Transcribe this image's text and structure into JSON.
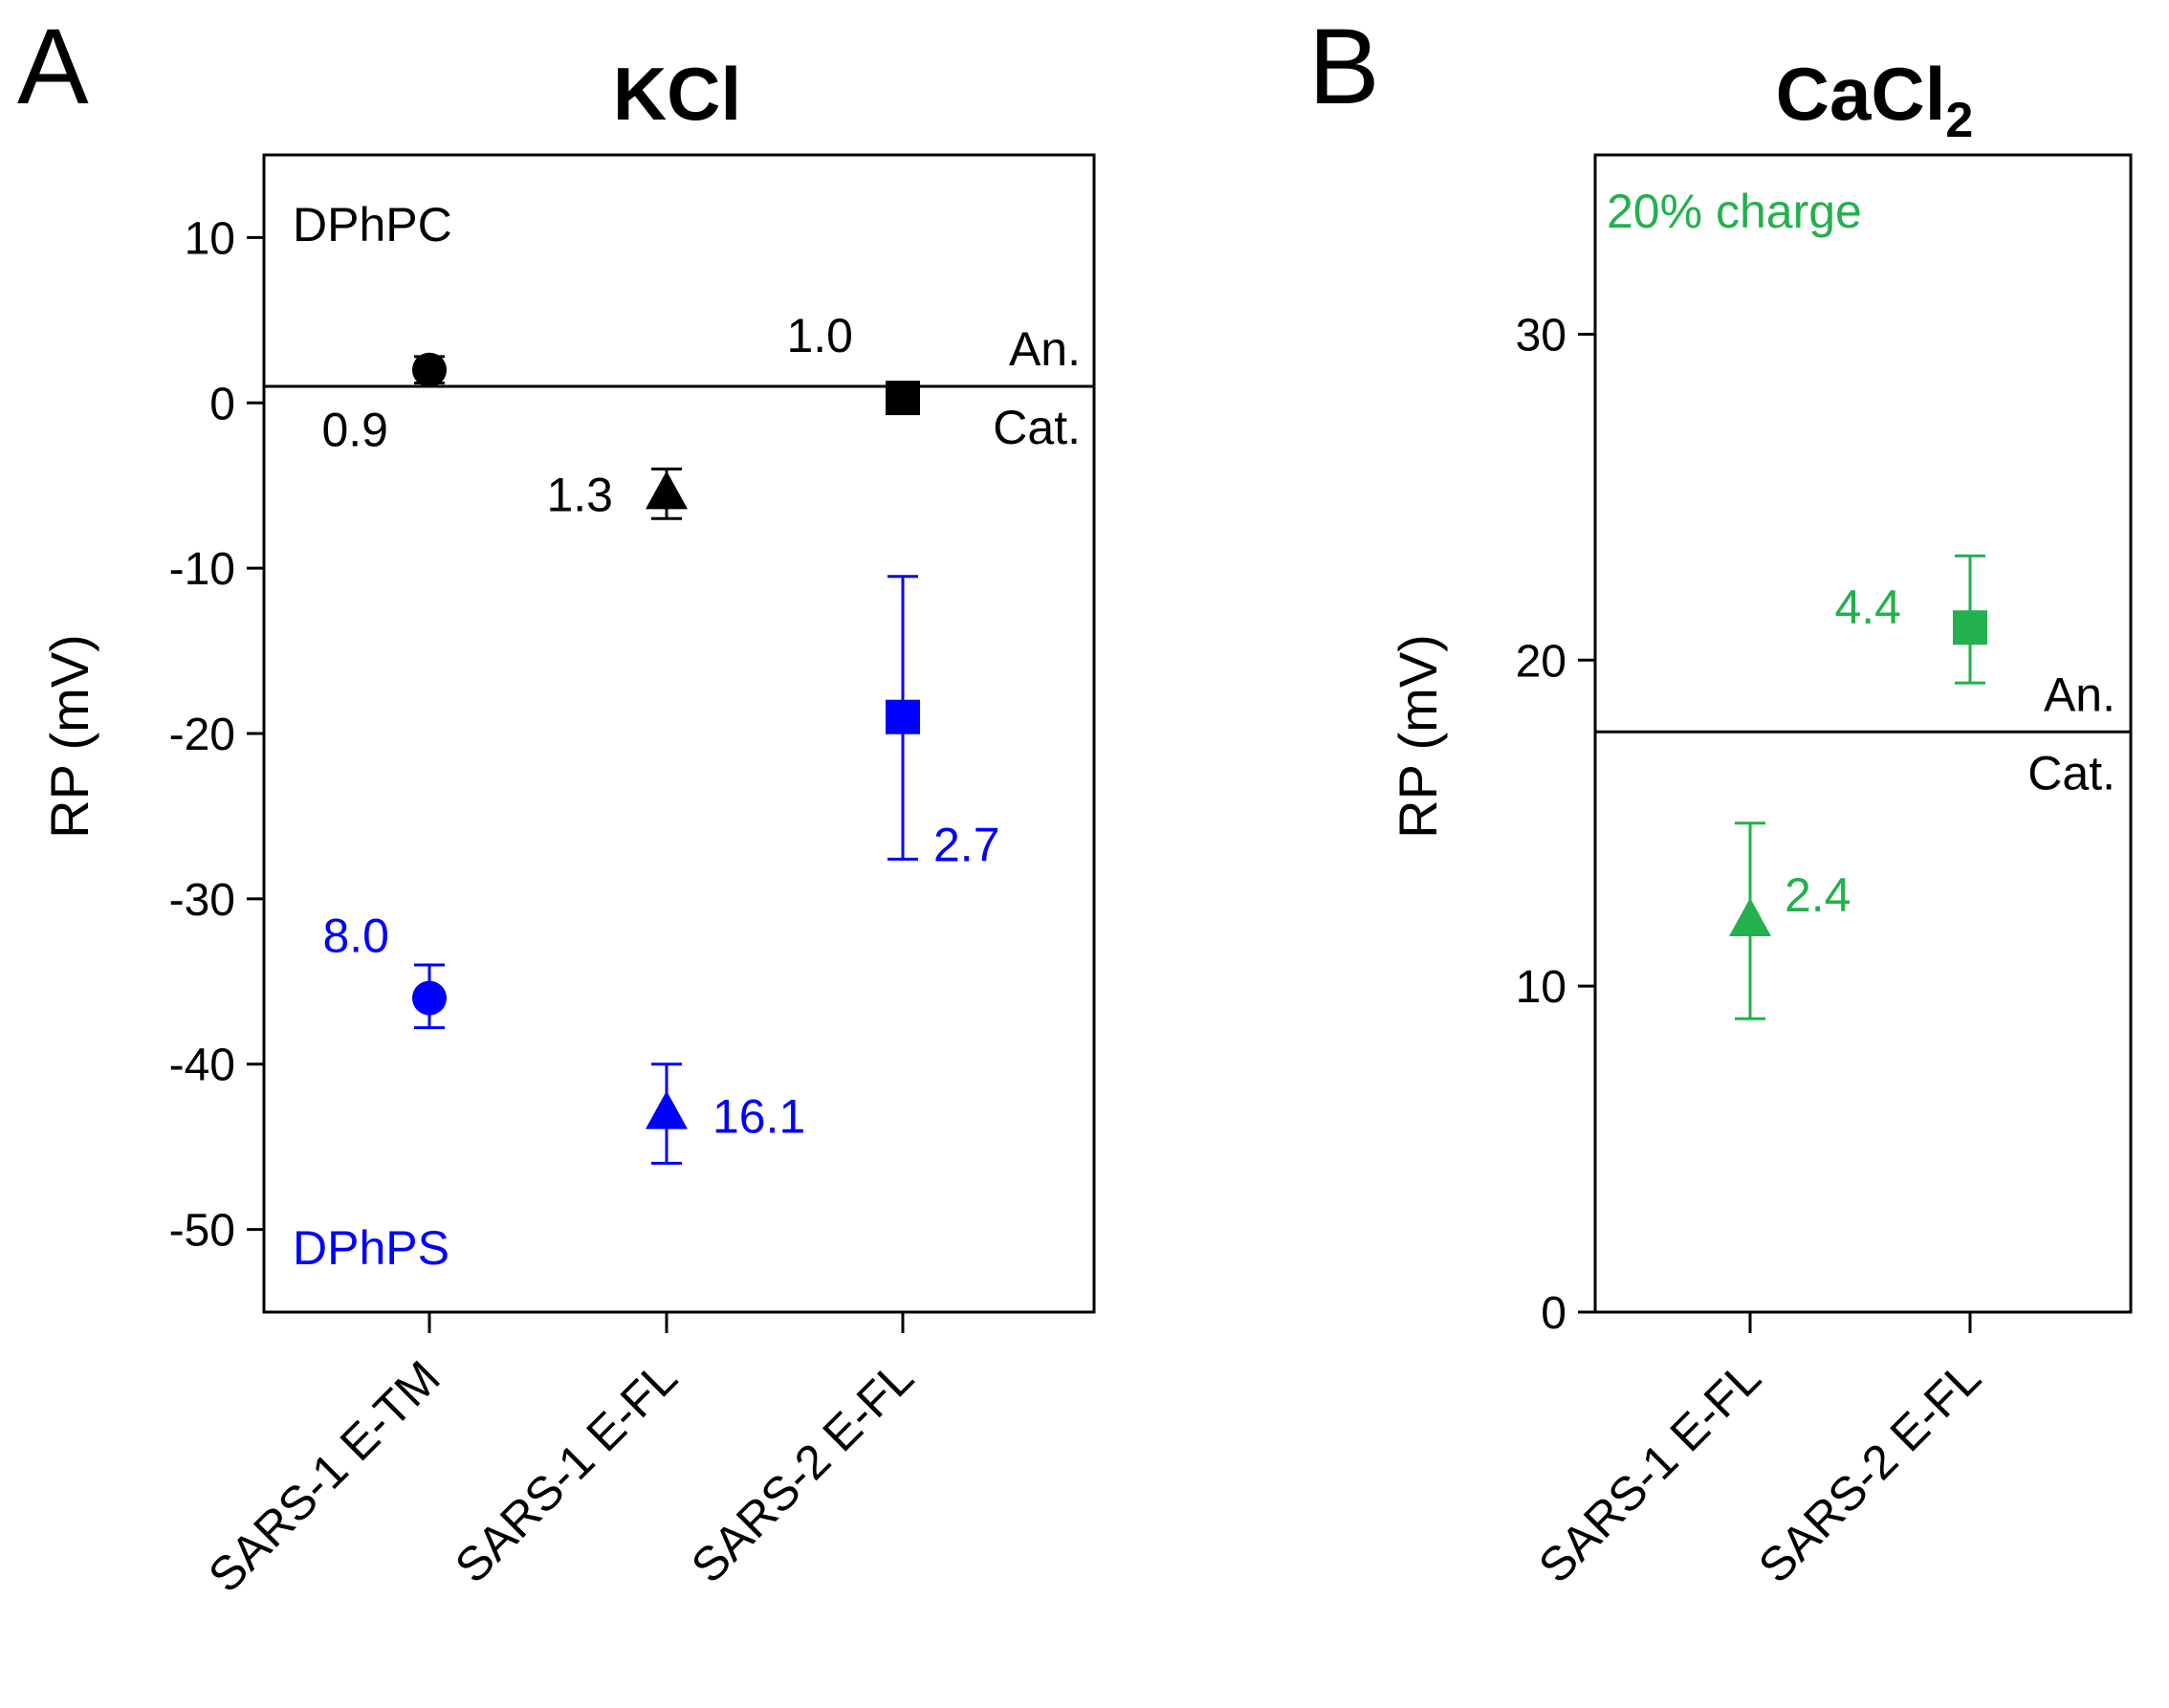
{
  "chart_data": [
    {
      "panel": "A",
      "type": "scatter",
      "title": "KCl",
      "ylabel": "RP (mV)",
      "xlabel": "",
      "ylim": [
        -55,
        15
      ],
      "yticks": [
        10,
        0,
        -10,
        -20,
        -30,
        -40,
        -50
      ],
      "categories": [
        "SARS-1 E-TM",
        "SARS-1 E-FL",
        "SARS-2 E-FL"
      ],
      "reference_line": {
        "y": 1,
        "above_label": "An.",
        "below_label": "Cat."
      },
      "group_labels": [
        {
          "text": "DPhPC",
          "color": "#000000"
        },
        {
          "text": "DPhPS",
          "color": "#0000ff"
        }
      ],
      "series": [
        {
          "name": "DPhPC",
          "color": "#000000",
          "points": [
            {
              "category": "SARS-1 E-TM",
              "marker": "circle",
              "y": 2,
              "err_low": 1.2,
              "err_high": 2.8,
              "label": "0.9"
            },
            {
              "category": "SARS-1 E-FL",
              "marker": "triangle",
              "y": -5.5,
              "err_low": -7,
              "err_high": -4,
              "label": "1.3"
            },
            {
              "category": "SARS-2 E-FL",
              "marker": "square",
              "y": 0.3,
              "err_low": -0.5,
              "err_high": 1,
              "label": "1.0"
            }
          ]
        },
        {
          "name": "DPhPS",
          "color": "#0000ff",
          "points": [
            {
              "category": "SARS-1 E-TM",
              "marker": "circle",
              "y": -36,
              "err_low": -37.8,
              "err_high": -34,
              "label": "8.0"
            },
            {
              "category": "SARS-1 E-FL",
              "marker": "triangle",
              "y": -43,
              "err_low": -46,
              "err_high": -40,
              "label": "16.1"
            },
            {
              "category": "SARS-2 E-FL",
              "marker": "square",
              "y": -19,
              "err_low": -27.6,
              "err_high": -10.5,
              "label": "2.7"
            }
          ]
        }
      ]
    },
    {
      "panel": "B",
      "type": "scatter",
      "title": "CaCl",
      "title_subscript": "2",
      "ylabel": "RP (mV)",
      "xlabel": "",
      "ylim": [
        0,
        35.5
      ],
      "yticks": [
        30,
        20,
        10,
        0
      ],
      "categories": [
        "SARS-1 E-FL",
        "SARS-2 E-FL"
      ],
      "reference_line": {
        "y": 17.8,
        "above_label": "An.",
        "below_label": "Cat."
      },
      "group_labels": [
        {
          "text": "20% charge",
          "color": "#22b14c"
        }
      ],
      "series": [
        {
          "name": "20% charge",
          "color": "#22b14c",
          "points": [
            {
              "category": "SARS-1 E-FL",
              "marker": "triangle",
              "y": 12,
              "err_low": 9,
              "err_high": 15,
              "label": "2.4"
            },
            {
              "category": "SARS-2 E-FL",
              "marker": "square",
              "y": 21,
              "err_low": 19.3,
              "err_high": 23.2,
              "label": "4.4"
            }
          ]
        }
      ]
    }
  ]
}
